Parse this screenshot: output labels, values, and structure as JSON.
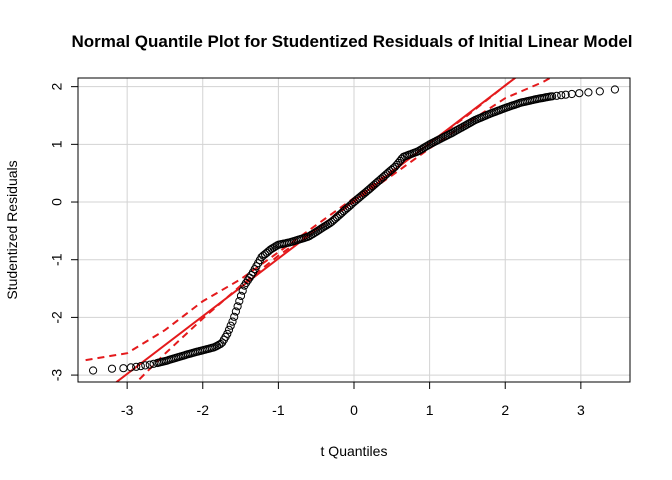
{
  "chart_data": {
    "type": "scatter",
    "title": "Normal Quantile Plot for Studentized Residuals of Initial Linear Model",
    "xlabel": "t Quantiles",
    "ylabel": "Studentized Residuals",
    "xlim": [
      -3.65,
      3.65
    ],
    "ylim": [
      -3.12,
      2.15
    ],
    "xticks": [
      -3,
      -2,
      -1,
      0,
      1,
      2,
      3
    ],
    "yticks": [
      -3,
      -2,
      -1,
      0,
      1,
      2
    ],
    "grid": true,
    "colors": {
      "points": "#000000",
      "reference_line": "#e41a1c",
      "envelope": "#e41a1c",
      "grid": "#d3d3d3"
    },
    "points_curve": [
      [
        -3.45,
        -2.92
      ],
      [
        -3.2,
        -2.89
      ],
      [
        -3.05,
        -2.88
      ],
      [
        -2.9,
        -2.86
      ],
      [
        -2.7,
        -2.82
      ],
      [
        -2.5,
        -2.76
      ],
      [
        -2.2,
        -2.64
      ],
      [
        -2.0,
        -2.57
      ],
      [
        -1.85,
        -2.52
      ],
      [
        -1.75,
        -2.45
      ],
      [
        -1.68,
        -2.3
      ],
      [
        -1.6,
        -2.05
      ],
      [
        -1.5,
        -1.65
      ],
      [
        -1.45,
        -1.45
      ],
      [
        -1.35,
        -1.25
      ],
      [
        -1.22,
        -0.95
      ],
      [
        -1.1,
        -0.82
      ],
      [
        -1.0,
        -0.74
      ],
      [
        -0.85,
        -0.7
      ],
      [
        -0.6,
        -0.6
      ],
      [
        -0.3,
        -0.35
      ],
      [
        0.0,
        0.0
      ],
      [
        0.2,
        0.22
      ],
      [
        0.4,
        0.45
      ],
      [
        0.55,
        0.62
      ],
      [
        0.65,
        0.78
      ],
      [
        0.85,
        0.88
      ],
      [
        1.0,
        1.0
      ],
      [
        1.3,
        1.2
      ],
      [
        1.6,
        1.42
      ],
      [
        1.8,
        1.53
      ],
      [
        2.0,
        1.63
      ],
      [
        2.2,
        1.72
      ],
      [
        2.4,
        1.78
      ],
      [
        2.6,
        1.83
      ],
      [
        2.8,
        1.86
      ],
      [
        3.0,
        1.89
      ],
      [
        3.2,
        1.91
      ],
      [
        3.45,
        1.95
      ]
    ],
    "point_count": 230,
    "reference_line": {
      "intercept": 0.02,
      "slope": 1.0,
      "x_range": [
        -3.65,
        3.65
      ]
    },
    "envelope_upper": [
      [
        -3.55,
        -2.74
      ],
      [
        -3.0,
        -2.62
      ],
      [
        -2.5,
        -2.22
      ],
      [
        -2.0,
        -1.72
      ],
      [
        -1.5,
        -1.34
      ],
      [
        -1.0,
        -0.87
      ],
      [
        -0.5,
        -0.4
      ],
      [
        0.0,
        0.07
      ],
      [
        0.5,
        0.54
      ],
      [
        1.0,
        1.02
      ],
      [
        1.5,
        1.5
      ],
      [
        2.0,
        2.02
      ],
      [
        2.35,
        2.38
      ]
    ],
    "envelope_lower": [
      [
        -2.95,
        -3.22
      ],
      [
        -2.5,
        -2.63
      ],
      [
        -2.0,
        -2.02
      ],
      [
        -1.5,
        -1.45
      ],
      [
        -1.0,
        -0.93
      ],
      [
        -0.5,
        -0.47
      ],
      [
        0.0,
        0.0
      ],
      [
        0.5,
        0.46
      ],
      [
        1.0,
        0.93
      ],
      [
        1.5,
        1.37
      ],
      [
        2.0,
        1.8
      ],
      [
        2.5,
        2.08
      ],
      [
        3.0,
        2.45
      ]
    ]
  }
}
